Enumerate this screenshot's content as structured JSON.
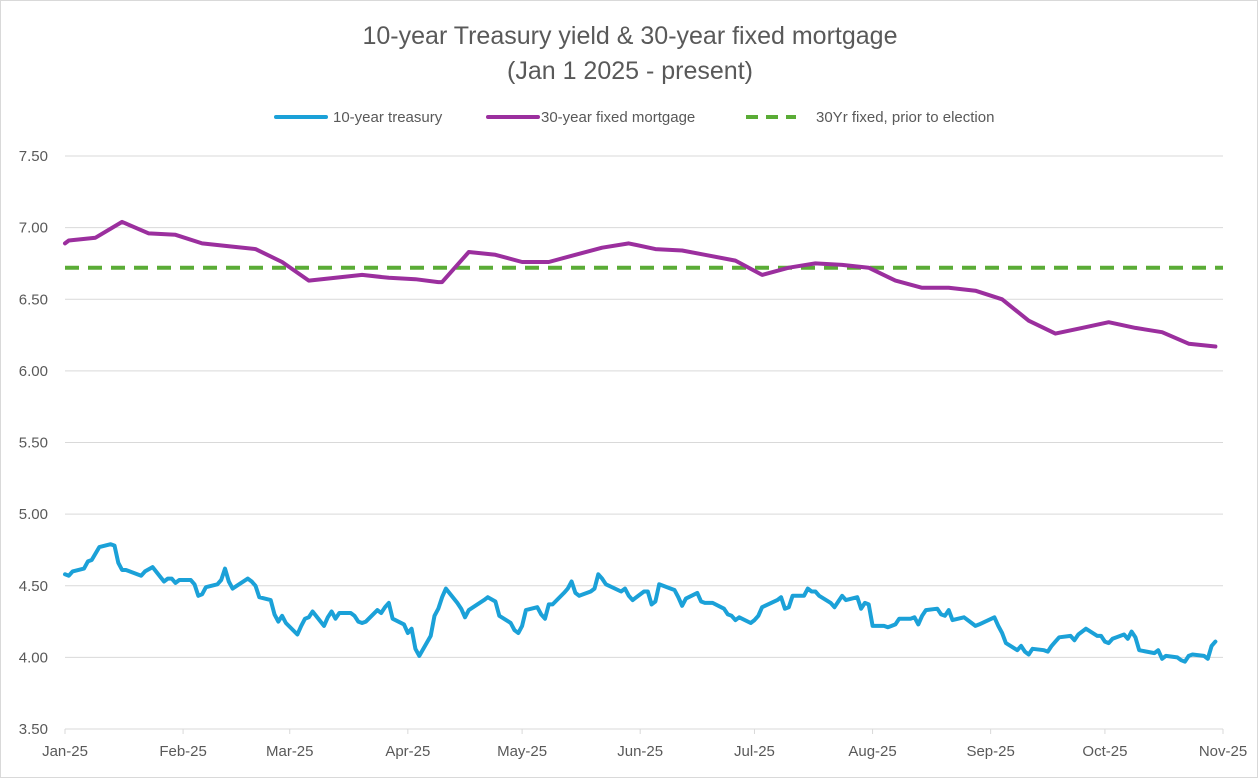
{
  "chart_data": {
    "type": "line",
    "title": "10-year Treasury yield & 30-year fixed mortgage",
    "subtitle": "(Jan 1 2025 - present)",
    "xlabel": "",
    "ylabel": "",
    "ylim": [
      3.5,
      7.5
    ],
    "yticks": [
      "7.50",
      "7.00",
      "6.50",
      "6.00",
      "5.50",
      "5.00",
      "4.50",
      "4.00",
      "3.50"
    ],
    "xticks": [
      {
        "date": "2025-01-01",
        "label": "Jan-25"
      },
      {
        "date": "2025-02-01",
        "label": "Feb-25"
      },
      {
        "date": "2025-03-01",
        "label": "Mar-25"
      },
      {
        "date": "2025-04-01",
        "label": "Apr-25"
      },
      {
        "date": "2025-05-01",
        "label": "May-25"
      },
      {
        "date": "2025-06-01",
        "label": "Jun-25"
      },
      {
        "date": "2025-07-01",
        "label": "Jul-25"
      },
      {
        "date": "2025-08-01",
        "label": "Aug-25"
      },
      {
        "date": "2025-09-01",
        "label": "Sep-25"
      },
      {
        "date": "2025-10-01",
        "label": "Oct-25"
      },
      {
        "date": "2025-11-01",
        "label": "Nov-25"
      }
    ],
    "grid": true,
    "legend_position": "top",
    "series": [
      {
        "name": "10-year treasury",
        "color": "#1ba1d8",
        "style": "solid",
        "points": [
          [
            "2025-01-01",
            4.58
          ],
          [
            "2025-01-02",
            4.57
          ],
          [
            "2025-01-03",
            4.6
          ],
          [
            "2025-01-06",
            4.62
          ],
          [
            "2025-01-07",
            4.67
          ],
          [
            "2025-01-08",
            4.68
          ],
          [
            "2025-01-10",
            4.77
          ],
          [
            "2025-01-13",
            4.79
          ],
          [
            "2025-01-14",
            4.78
          ],
          [
            "2025-01-15",
            4.66
          ],
          [
            "2025-01-16",
            4.61
          ],
          [
            "2025-01-17",
            4.61
          ],
          [
            "2025-01-21",
            4.57
          ],
          [
            "2025-01-22",
            4.6
          ],
          [
            "2025-01-24",
            4.63
          ],
          [
            "2025-01-27",
            4.53
          ],
          [
            "2025-01-28",
            4.55
          ],
          [
            "2025-01-29",
            4.55
          ],
          [
            "2025-01-30",
            4.52
          ],
          [
            "2025-01-31",
            4.54
          ],
          [
            "2025-02-03",
            4.54
          ],
          [
            "2025-02-04",
            4.51
          ],
          [
            "2025-02-05",
            4.43
          ],
          [
            "2025-02-06",
            4.44
          ],
          [
            "2025-02-07",
            4.49
          ],
          [
            "2025-02-10",
            4.51
          ],
          [
            "2025-02-11",
            4.54
          ],
          [
            "2025-02-12",
            4.62
          ],
          [
            "2025-02-13",
            4.53
          ],
          [
            "2025-02-14",
            4.48
          ],
          [
            "2025-02-18",
            4.55
          ],
          [
            "2025-02-19",
            4.53
          ],
          [
            "2025-02-20",
            4.5
          ],
          [
            "2025-02-21",
            4.42
          ],
          [
            "2025-02-24",
            4.4
          ],
          [
            "2025-02-25",
            4.3
          ],
          [
            "2025-02-26",
            4.25
          ],
          [
            "2025-02-27",
            4.29
          ],
          [
            "2025-02-28",
            4.24
          ],
          [
            "2025-03-03",
            4.16
          ],
          [
            "2025-03-04",
            4.22
          ],
          [
            "2025-03-05",
            4.27
          ],
          [
            "2025-03-06",
            4.28
          ],
          [
            "2025-03-07",
            4.32
          ],
          [
            "2025-03-10",
            4.22
          ],
          [
            "2025-03-11",
            4.28
          ],
          [
            "2025-03-12",
            4.32
          ],
          [
            "2025-03-13",
            4.27
          ],
          [
            "2025-03-14",
            4.31
          ],
          [
            "2025-03-17",
            4.31
          ],
          [
            "2025-03-18",
            4.29
          ],
          [
            "2025-03-19",
            4.25
          ],
          [
            "2025-03-20",
            4.24
          ],
          [
            "2025-03-21",
            4.25
          ],
          [
            "2025-03-24",
            4.33
          ],
          [
            "2025-03-25",
            4.31
          ],
          [
            "2025-03-26",
            4.35
          ],
          [
            "2025-03-27",
            4.38
          ],
          [
            "2025-03-28",
            4.27
          ],
          [
            "2025-03-31",
            4.23
          ],
          [
            "2025-04-01",
            4.17
          ],
          [
            "2025-04-02",
            4.2
          ],
          [
            "2025-04-03",
            4.06
          ],
          [
            "2025-04-04",
            4.01
          ],
          [
            "2025-04-07",
            4.15
          ],
          [
            "2025-04-08",
            4.29
          ],
          [
            "2025-04-09",
            4.34
          ],
          [
            "2025-04-10",
            4.42
          ],
          [
            "2025-04-11",
            4.48
          ],
          [
            "2025-04-14",
            4.38
          ],
          [
            "2025-04-15",
            4.34
          ],
          [
            "2025-04-16",
            4.28
          ],
          [
            "2025-04-17",
            4.33
          ],
          [
            "2025-04-21",
            4.4
          ],
          [
            "2025-04-22",
            4.42
          ],
          [
            "2025-04-24",
            4.39
          ],
          [
            "2025-04-25",
            4.29
          ],
          [
            "2025-04-28",
            4.24
          ],
          [
            "2025-04-29",
            4.19
          ],
          [
            "2025-04-30",
            4.17
          ],
          [
            "2025-05-01",
            4.22
          ],
          [
            "2025-05-02",
            4.33
          ],
          [
            "2025-05-05",
            4.35
          ],
          [
            "2025-05-06",
            4.3
          ],
          [
            "2025-05-07",
            4.27
          ],
          [
            "2025-05-08",
            4.37
          ],
          [
            "2025-05-09",
            4.37
          ],
          [
            "2025-05-12",
            4.45
          ],
          [
            "2025-05-13",
            4.48
          ],
          [
            "2025-05-14",
            4.53
          ],
          [
            "2025-05-15",
            4.45
          ],
          [
            "2025-05-16",
            4.43
          ],
          [
            "2025-05-19",
            4.46
          ],
          [
            "2025-05-20",
            4.48
          ],
          [
            "2025-05-21",
            4.58
          ],
          [
            "2025-05-22",
            4.55
          ],
          [
            "2025-05-23",
            4.51
          ],
          [
            "2025-05-27",
            4.46
          ],
          [
            "2025-05-28",
            4.48
          ],
          [
            "2025-05-29",
            4.43
          ],
          [
            "2025-05-30",
            4.4
          ],
          [
            "2025-06-02",
            4.46
          ],
          [
            "2025-06-03",
            4.46
          ],
          [
            "2025-06-04",
            4.37
          ],
          [
            "2025-06-05",
            4.39
          ],
          [
            "2025-06-06",
            4.51
          ],
          [
            "2025-06-09",
            4.48
          ],
          [
            "2025-06-10",
            4.47
          ],
          [
            "2025-06-11",
            4.42
          ],
          [
            "2025-06-12",
            4.36
          ],
          [
            "2025-06-13",
            4.41
          ],
          [
            "2025-06-16",
            4.45
          ],
          [
            "2025-06-17",
            4.39
          ],
          [
            "2025-06-18",
            4.38
          ],
          [
            "2025-06-20",
            4.38
          ],
          [
            "2025-06-23",
            4.34
          ],
          [
            "2025-06-24",
            4.3
          ],
          [
            "2025-06-25",
            4.29
          ],
          [
            "2025-06-26",
            4.26
          ],
          [
            "2025-06-27",
            4.28
          ],
          [
            "2025-06-30",
            4.24
          ],
          [
            "2025-07-01",
            4.26
          ],
          [
            "2025-07-02",
            4.29
          ],
          [
            "2025-07-03",
            4.35
          ],
          [
            "2025-07-07",
            4.4
          ],
          [
            "2025-07-08",
            4.42
          ],
          [
            "2025-07-09",
            4.34
          ],
          [
            "2025-07-10",
            4.35
          ],
          [
            "2025-07-11",
            4.43
          ],
          [
            "2025-07-14",
            4.43
          ],
          [
            "2025-07-15",
            4.48
          ],
          [
            "2025-07-16",
            4.46
          ],
          [
            "2025-07-17",
            4.46
          ],
          [
            "2025-07-18",
            4.43
          ],
          [
            "2025-07-21",
            4.38
          ],
          [
            "2025-07-22",
            4.35
          ],
          [
            "2025-07-23",
            4.39
          ],
          [
            "2025-07-24",
            4.43
          ],
          [
            "2025-07-25",
            4.4
          ],
          [
            "2025-07-28",
            4.42
          ],
          [
            "2025-07-29",
            4.34
          ],
          [
            "2025-07-30",
            4.38
          ],
          [
            "2025-07-31",
            4.37
          ],
          [
            "2025-08-01",
            4.22
          ],
          [
            "2025-08-04",
            4.22
          ],
          [
            "2025-08-05",
            4.21
          ],
          [
            "2025-08-06",
            4.22
          ],
          [
            "2025-08-07",
            4.23
          ],
          [
            "2025-08-08",
            4.27
          ],
          [
            "2025-08-11",
            4.27
          ],
          [
            "2025-08-12",
            4.28
          ],
          [
            "2025-08-13",
            4.23
          ],
          [
            "2025-08-14",
            4.29
          ],
          [
            "2025-08-15",
            4.33
          ],
          [
            "2025-08-18",
            4.34
          ],
          [
            "2025-08-19",
            4.3
          ],
          [
            "2025-08-20",
            4.29
          ],
          [
            "2025-08-21",
            4.33
          ],
          [
            "2025-08-22",
            4.26
          ],
          [
            "2025-08-25",
            4.28
          ],
          [
            "2025-08-26",
            4.26
          ],
          [
            "2025-08-27",
            4.24
          ],
          [
            "2025-08-28",
            4.22
          ],
          [
            "2025-08-29",
            4.23
          ],
          [
            "2025-09-02",
            4.28
          ],
          [
            "2025-09-03",
            4.22
          ],
          [
            "2025-09-04",
            4.17
          ],
          [
            "2025-09-05",
            4.1
          ],
          [
            "2025-09-08",
            4.05
          ],
          [
            "2025-09-09",
            4.08
          ],
          [
            "2025-09-10",
            4.04
          ],
          [
            "2025-09-11",
            4.02
          ],
          [
            "2025-09-12",
            4.06
          ],
          [
            "2025-09-15",
            4.05
          ],
          [
            "2025-09-16",
            4.04
          ],
          [
            "2025-09-17",
            4.08
          ],
          [
            "2025-09-18",
            4.11
          ],
          [
            "2025-09-19",
            4.14
          ],
          [
            "2025-09-22",
            4.15
          ],
          [
            "2025-09-23",
            4.12
          ],
          [
            "2025-09-24",
            4.16
          ],
          [
            "2025-09-25",
            4.18
          ],
          [
            "2025-09-26",
            4.2
          ],
          [
            "2025-09-29",
            4.15
          ],
          [
            "2025-09-30",
            4.15
          ],
          [
            "2025-10-01",
            4.11
          ],
          [
            "2025-10-02",
            4.1
          ],
          [
            "2025-10-03",
            4.13
          ],
          [
            "2025-10-06",
            4.16
          ],
          [
            "2025-10-07",
            4.13
          ],
          [
            "2025-10-08",
            4.18
          ],
          [
            "2025-10-09",
            4.14
          ],
          [
            "2025-10-10",
            4.05
          ],
          [
            "2025-10-14",
            4.03
          ],
          [
            "2025-10-15",
            4.05
          ],
          [
            "2025-10-16",
            3.99
          ],
          [
            "2025-10-17",
            4.01
          ],
          [
            "2025-10-20",
            4.0
          ],
          [
            "2025-10-21",
            3.98
          ],
          [
            "2025-10-22",
            3.97
          ],
          [
            "2025-10-23",
            4.01
          ],
          [
            "2025-10-24",
            4.02
          ],
          [
            "2025-10-27",
            4.01
          ],
          [
            "2025-10-28",
            3.99
          ],
          [
            "2025-10-29",
            4.08
          ],
          [
            "2025-10-30",
            4.11
          ]
        ]
      },
      {
        "name": "30-year fixed mortgage",
        "color": "#9b2f9e",
        "style": "solid",
        "points": [
          [
            "2025-01-01",
            6.89
          ],
          [
            "2025-01-02",
            6.91
          ],
          [
            "2025-01-09",
            6.93
          ],
          [
            "2025-01-16",
            7.04
          ],
          [
            "2025-01-23",
            6.96
          ],
          [
            "2025-01-30",
            6.95
          ],
          [
            "2025-02-06",
            6.89
          ],
          [
            "2025-02-13",
            6.87
          ],
          [
            "2025-02-20",
            6.85
          ],
          [
            "2025-02-27",
            6.76
          ],
          [
            "2025-03-06",
            6.63
          ],
          [
            "2025-03-13",
            6.65
          ],
          [
            "2025-03-20",
            6.67
          ],
          [
            "2025-03-27",
            6.65
          ],
          [
            "2025-04-03",
            6.64
          ],
          [
            "2025-04-09",
            6.62
          ],
          [
            "2025-04-10",
            6.62
          ],
          [
            "2025-04-17",
            6.83
          ],
          [
            "2025-04-24",
            6.81
          ],
          [
            "2025-05-01",
            6.76
          ],
          [
            "2025-05-08",
            6.76
          ],
          [
            "2025-05-15",
            6.81
          ],
          [
            "2025-05-22",
            6.86
          ],
          [
            "2025-05-29",
            6.89
          ],
          [
            "2025-06-05",
            6.85
          ],
          [
            "2025-06-12",
            6.84
          ],
          [
            "2025-06-18",
            6.81
          ],
          [
            "2025-06-26",
            6.77
          ],
          [
            "2025-07-03",
            6.67
          ],
          [
            "2025-07-10",
            6.72
          ],
          [
            "2025-07-17",
            6.75
          ],
          [
            "2025-07-24",
            6.74
          ],
          [
            "2025-07-31",
            6.72
          ],
          [
            "2025-08-07",
            6.63
          ],
          [
            "2025-08-14",
            6.58
          ],
          [
            "2025-08-21",
            6.58
          ],
          [
            "2025-08-28",
            6.56
          ],
          [
            "2025-09-04",
            6.5
          ],
          [
            "2025-09-11",
            6.35
          ],
          [
            "2025-09-18",
            6.26
          ],
          [
            "2025-09-25",
            6.3
          ],
          [
            "2025-10-02",
            6.34
          ],
          [
            "2025-10-09",
            6.3
          ],
          [
            "2025-10-16",
            6.27
          ],
          [
            "2025-10-23",
            6.19
          ],
          [
            "2025-10-30",
            6.17
          ]
        ]
      },
      {
        "name": "30Yr fixed, prior to election",
        "color": "#5aac36",
        "style": "dashed",
        "points": [
          [
            "2025-01-01",
            6.72
          ],
          [
            "2025-11-10",
            6.72
          ]
        ]
      }
    ]
  }
}
